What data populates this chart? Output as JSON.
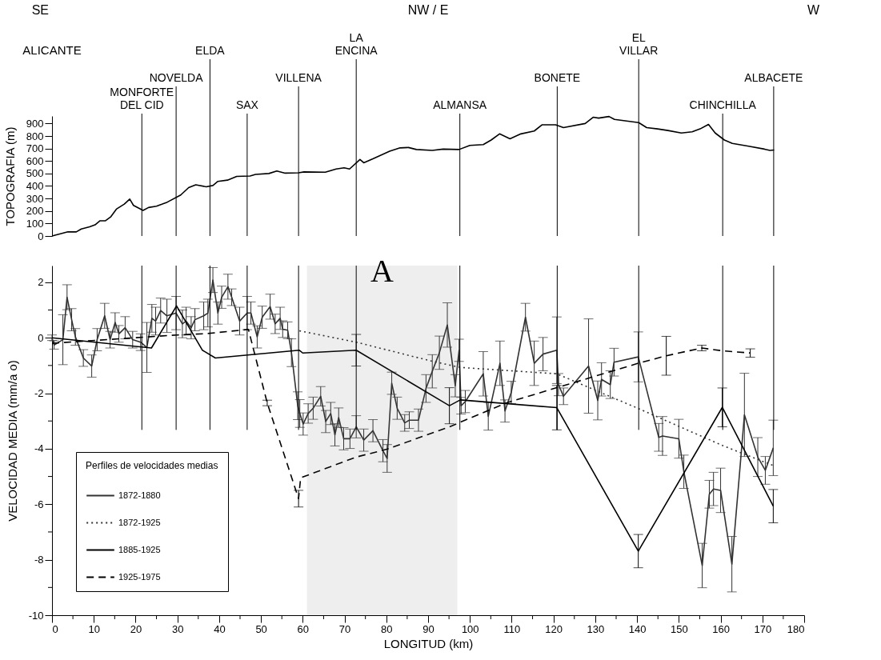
{
  "chart_data": [
    {
      "type": "line",
      "ylabel": "TOPOGRAFIA (m)",
      "xlim": [
        0,
        180
      ],
      "ylim": [
        0,
        960
      ],
      "yticks": [
        0,
        100,
        200,
        300,
        400,
        500,
        600,
        700,
        800,
        900
      ],
      "tick_labels": "y",
      "grid": false,
      "legend": false,
      "series": [
        {
          "color": "#000000",
          "x": [
            0,
            3.8,
            5.8,
            7,
            9,
            10.3,
            11.5,
            12.8,
            14.1,
            15.4,
            17.3,
            18.6,
            19.5,
            21.8,
            23.1,
            25,
            27.6,
            30.8,
            32.7,
            34.4,
            36.9,
            38.5,
            39.7,
            42,
            44.2,
            47.4,
            48.7,
            51.9,
            53.8,
            55.8,
            59,
            60.3,
            65.4,
            68,
            69.9,
            71.2,
            73.7,
            74.6,
            76.9,
            80.8,
            83.3,
            85.3,
            87.2,
            91,
            93.6,
            97.4,
            100,
            103.2,
            105.1,
            107.1,
            109.6,
            112.2,
            115.4,
            117.3,
            120.5,
            122.4,
            127.6,
            129.5,
            130.8,
            133.3,
            134.6,
            140.4,
            142.3,
            144.9,
            147.4,
            150.6,
            153.2,
            155.1,
            157.1,
            158.7,
            160.9,
            162.8,
            166.7,
            170.5,
            171.8,
            172.8
          ],
          "values": [
            0,
            33,
            33,
            56,
            73,
            89,
            122,
            122,
            155,
            215,
            255,
            295,
            245,
            205,
            228,
            238,
            271,
            328,
            387,
            410,
            394,
            404,
            437,
            447,
            477,
            480,
            493,
            500,
            520,
            503,
            506,
            513,
            510,
            536,
            546,
            536,
            612,
            586,
            619,
            678,
            705,
            708,
            692,
            685,
            695,
            692,
            725,
            731,
            768,
            817,
            778,
            817,
            840,
            890,
            890,
            867,
            900,
            950,
            943,
            956,
            933,
            907,
            867,
            857,
            844,
            824,
            834,
            857,
            893,
            824,
            768,
            741,
            718,
            695,
            685,
            688
          ]
        }
      ],
      "ref_lines": [
        {
          "axis": "x",
          "value": 21.5,
          "label": "MONFORTE\nDEL CID"
        },
        {
          "axis": "x",
          "value": 29.7,
          "label": "NOVELDA"
        },
        {
          "axis": "x",
          "value": 37.8,
          "label": "ELDA"
        },
        {
          "axis": "x",
          "value": 46.7,
          "label": "SAX"
        },
        {
          "axis": "x",
          "value": 59,
          "label": "VILLENA"
        },
        {
          "axis": "x",
          "value": 72.8,
          "label": "LA\nENCINA"
        },
        {
          "axis": "x",
          "value": 97.6,
          "label": "ALMANSA"
        },
        {
          "axis": "x",
          "value": 120.9,
          "label": "BONETE"
        },
        {
          "axis": "x",
          "value": 140.4,
          "label": "EL\nVILLAR"
        },
        {
          "axis": "x",
          "value": 160.5,
          "label": "CHINCHILLA"
        },
        {
          "axis": "x",
          "value": 172.7,
          "label": "ALBACETE"
        }
      ],
      "annotations": [
        "ALICANTE",
        "SE",
        "NW / E",
        "W"
      ]
    },
    {
      "type": "line",
      "xlabel": "LONGITUD  (km)",
      "ylabel": "VELOCIDAD MEDIA  (mm/a  o)",
      "xlim": [
        0,
        180
      ],
      "ylim": [
        -10,
        2.6
      ],
      "xticks": [
        0,
        {
          "value": 5,
          "label": null
        },
        10,
        {
          "value": 15,
          "label": null
        },
        20,
        {
          "value": 25,
          "label": null
        },
        30,
        {
          "value": 35,
          "label": null
        },
        40,
        {
          "value": 45,
          "label": null
        },
        50,
        {
          "value": 55,
          "label": null
        },
        60,
        {
          "value": 65,
          "label": null
        },
        70,
        {
          "value": 75,
          "label": null
        },
        80,
        {
          "value": 85,
          "label": null
        },
        90,
        {
          "value": 95,
          "label": null
        },
        100,
        {
          "value": 105,
          "label": null
        },
        110,
        {
          "value": 115,
          "label": null
        },
        120,
        {
          "value": 125,
          "label": null
        },
        130,
        {
          "value": 135,
          "label": null
        },
        140,
        {
          "value": 145,
          "label": null
        },
        150,
        {
          "value": 155,
          "label": null
        },
        160,
        {
          "value": 165,
          "label": null
        },
        170,
        {
          "value": 175,
          "label": null
        },
        180
      ],
      "yticks": [
        -10,
        {
          "value": -9,
          "label": null
        },
        -8,
        {
          "value": -7,
          "label": null
        },
        -6,
        {
          "value": -5,
          "label": null
        },
        -4,
        {
          "value": -3,
          "label": null
        },
        -2,
        {
          "value": -1,
          "label": null
        },
        0,
        {
          "value": 1,
          "label": null
        },
        2
      ],
      "grid": false,
      "legend": "bottom left",
      "legend_title": "Perfiles de velocidades medias",
      "series": [
        {
          "name": "1872-1880",
          "color": "#333333",
          "line_style": "solid",
          "x": [
            0,
            0.5,
            2.6,
            3.6,
            4.7,
            5.6,
            7.5,
            9.5,
            10.8,
            12.6,
            13.9,
            15.1,
            16,
            17.5,
            19.3,
            21.2,
            22.7,
            23.9,
            24.8,
            26,
            27.5,
            29.7,
            31.2,
            32.1,
            33.3,
            34.2,
            36.3,
            37.3,
            38.5,
            39.7,
            40.6,
            42.1,
            43,
            44.9,
            46.7,
            47.6,
            49.1,
            50.3,
            52.2,
            53.4,
            54.6,
            55.2,
            56.4,
            57.3,
            58.8,
            59.3,
            60.1,
            61.3,
            62.5,
            64.3,
            65.5,
            66.7,
            67.7,
            68.6,
            69.8,
            71.3,
            72.8,
            74.6,
            76.8,
            79.2,
            80.2,
            81.3,
            82.6,
            84.4,
            85.5,
            87.7,
            89.5,
            91,
            92.7,
            94.6,
            96.5,
            97.4,
            97.9,
            98.9,
            103.2,
            104.4,
            107.2,
            108.4,
            109.9,
            113.3,
            115.4,
            117.5,
            120.8,
            121.2,
            122.4,
            128.4,
            130.6,
            131.5,
            133.6,
            134.5,
            140.3,
            145.2,
            146.1,
            150,
            151.2,
            155.6,
            157.3,
            158.3,
            160,
            162.7,
            165.7,
            168.9,
            170.7,
            172.6
          ],
          "values": [
            0,
            -0.26,
            -0.07,
            1.46,
            0.65,
            0.03,
            -0.73,
            -1.02,
            -0.07,
            0.79,
            -0.07,
            0.55,
            0.14,
            0.36,
            -0.07,
            -0.16,
            -0.35,
            0.7,
            0.6,
            0.98,
            0.79,
            0.89,
            0.5,
            0.6,
            0.36,
            0.65,
            0.79,
            0.89,
            2.08,
            0.89,
            1.46,
            1.84,
            1.46,
            0.6,
            0.89,
            0.89,
            0.03,
            0.74,
            1.12,
            0.5,
            0.7,
            0.31,
            0.27,
            -0.54,
            -2.45,
            -2.73,
            -3.11,
            -2.73,
            -2.54,
            -2.11,
            -3.02,
            -2.73,
            -3.5,
            -2.88,
            -3.64,
            -3.64,
            -3.21,
            -3.69,
            -3.35,
            -4.07,
            -4.35,
            -1.64,
            -2.54,
            -3.07,
            -2.97,
            -2.97,
            -1.83,
            -1.21,
            -0.54,
            0.46,
            -1.73,
            -0.45,
            -2.45,
            -2.3,
            -1.3,
            -2.83,
            -0.92,
            -2.64,
            -1.97,
            0.74,
            -0.92,
            -0.59,
            -0.45,
            -1.69,
            -2.11,
            -1.02,
            -2.26,
            -1.5,
            -1.69,
            -0.88,
            -0.69,
            -3.59,
            -3.54,
            -3.64,
            -4.83,
            -8.21,
            -5.64,
            -5.45,
            -5.5,
            -8.16,
            -2.78,
            -4.3,
            -4.78,
            -3.97
          ],
          "errors": [
            0.1,
            0.15,
            0.9,
            0.45,
            0.4,
            0.3,
            0.3,
            0.4,
            0.4,
            0.45,
            0.3,
            0.35,
            0.3,
            0.4,
            0.3,
            0.3,
            0.9,
            0.5,
            0.5,
            0.45,
            0.6,
            0.6,
            0.5,
            0.5,
            0.4,
            0.4,
            0.5,
            0.5,
            0.45,
            0.4,
            0.4,
            0.45,
            0.3,
            0.5,
            0.6,
            0.4,
            0.4,
            0.4,
            0.45,
            0.35,
            0.4,
            0.3,
            0.3,
            0.5,
            0.5,
            0.5,
            0.4,
            0.35,
            0.4,
            0.35,
            0.4,
            0.4,
            0.4,
            0.35,
            0.4,
            0.35,
            0.4,
            0.4,
            0.4,
            0.4,
            0.5,
            0.4,
            0.4,
            0.3,
            0.3,
            0.4,
            0.5,
            0.6,
            0.6,
            0.8,
            0.4,
            0.4,
            0.3,
            0.4,
            0.8,
            0.5,
            0.8,
            0.4,
            0.4,
            0.5,
            0.8,
            0.6,
            1.2,
            0.4,
            0.3,
            1.7,
            0.7,
            0.6,
            0.5,
            0.5,
            0.9,
            0.5,
            0.7,
            0.7,
            0.6,
            0.8,
            0.5,
            0.6,
            0.8,
            1.0,
            1.5,
            0.7,
            0.5,
            1.0
          ]
        },
        {
          "name": "1872-1925",
          "color": "#333333",
          "line_style": "dotted",
          "x": [
            59.2,
            72.8,
            90.5,
            97.7,
            120.8,
            140.3,
            160.4,
            172.5
          ],
          "values": [
            0.25,
            -0.16,
            -0.83,
            -1.07,
            -1.3,
            -2.55,
            -3.88,
            -4.6
          ]
        },
        {
          "name": "1885-1925",
          "color": "#000000",
          "line_style": "solid",
          "x": [
            0,
            23.8,
            29.8,
            36,
            39.1,
            59.2,
            60,
            72.8,
            95.1,
            97.7,
            120.8,
            140.3,
            160.4,
            172.6
          ],
          "values": [
            0,
            -0.37,
            1.15,
            -0.45,
            -0.73,
            -0.45,
            -0.55,
            -0.45,
            -2.45,
            -2.24,
            -2.52,
            -7.69,
            -2.51,
            -6.07
          ],
          "errors": [
            null,
            null,
            null,
            null,
            null,
            null,
            null,
            0.57,
            0.65,
            null,
            0.8,
            0.6,
            0.7,
            0.6
          ]
        },
        {
          "name": "1925-1975",
          "color": "#000000",
          "line_style": "dashed",
          "x": [
            0,
            30,
            37,
            47,
            51.5,
            59,
            59.5,
            72.8,
            80.1,
            95.1,
            108.7,
            120.8,
            140.3,
            147,
            155.5,
            160.4,
            167.1
          ],
          "values": [
            -0.2,
            0.1,
            0.15,
            0.3,
            -2.35,
            -5.8,
            -5.05,
            -4.3,
            -4.02,
            -3.21,
            -2.35,
            -1.8,
            -0.92,
            -0.65,
            -0.37,
            -0.47,
            -0.55
          ],
          "errors": [
            null,
            null,
            null,
            null,
            0.1,
            0.3,
            null,
            null,
            null,
            null,
            null,
            null,
            null,
            0.7,
            0.1,
            null,
            0.15
          ]
        }
      ],
      "ref_lines": [
        {
          "axis": "x",
          "value": 21.5
        },
        {
          "axis": "x",
          "value": 29.7
        },
        {
          "axis": "x",
          "value": 37.8
        },
        {
          "axis": "x",
          "value": 46.7
        },
        {
          "axis": "x",
          "value": 59
        },
        {
          "axis": "x",
          "value": 72.8
        },
        {
          "axis": "x",
          "value": 97.6
        },
        {
          "axis": "x",
          "value": 120.9
        },
        {
          "axis": "x",
          "value": 140.4
        },
        {
          "axis": "x",
          "value": 160.5
        },
        {
          "axis": "x",
          "value": 172.7
        }
      ],
      "bands": [
        {
          "axis": "x",
          "from": 61,
          "to": 97,
          "label": "A"
        }
      ]
    }
  ]
}
